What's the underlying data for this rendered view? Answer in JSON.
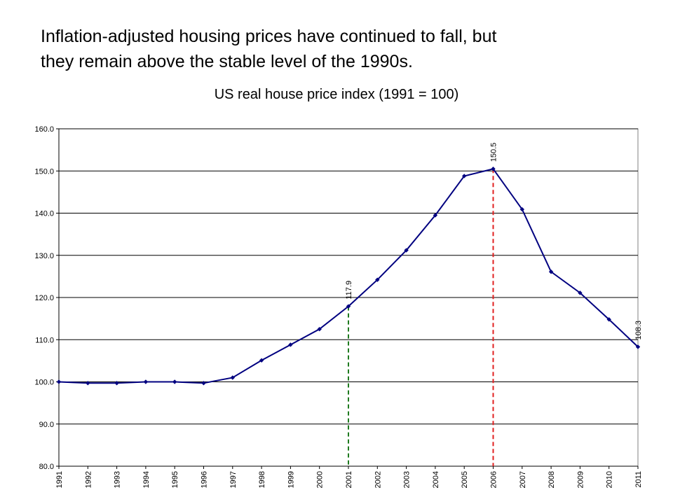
{
  "slide": {
    "headline_line1": "Inflation-adjusted housing prices have continued to fall, but",
    "headline_line2": "they remain above the stable level of the 1990s."
  },
  "chart_data": {
    "type": "line",
    "title": "US real house price index (1991 = 100)",
    "xlabel": "",
    "ylabel": "",
    "categories": [
      "1991",
      "1992",
      "1993",
      "1994",
      "1995",
      "1996",
      "1997",
      "1998",
      "1999",
      "2000",
      "2001",
      "2002",
      "2003",
      "2004",
      "2005",
      "2006",
      "2007",
      "2008",
      "2009",
      "2010",
      "2011"
    ],
    "series": [
      {
        "values": [
          100.0,
          99.7,
          99.7,
          100.0,
          100.0,
          99.7,
          101.0,
          105.1,
          108.8,
          112.5,
          117.9,
          124.2,
          131.2,
          139.5,
          148.8,
          150.5,
          140.9,
          126.1,
          121.1,
          114.8,
          108.3
        ]
      }
    ],
    "ylim": [
      80,
      160
    ],
    "yticks": [
      "80.0",
      "90.0",
      "100.0",
      "110.0",
      "120.0",
      "130.0",
      "140.0",
      "150.0",
      "160.0"
    ],
    "grid": "horizontal",
    "legend": "none",
    "annotations": [
      {
        "category": "2001",
        "value": 117.9,
        "label": "117.9",
        "color": "#1f7a1f"
      },
      {
        "category": "2006",
        "value": 150.5,
        "label": "150.5",
        "color": "#e02020"
      },
      {
        "category": "2011",
        "value": 108.3,
        "label": "108.3"
      }
    ],
    "colors": {
      "line": "#000080",
      "grid": "#000000"
    }
  }
}
